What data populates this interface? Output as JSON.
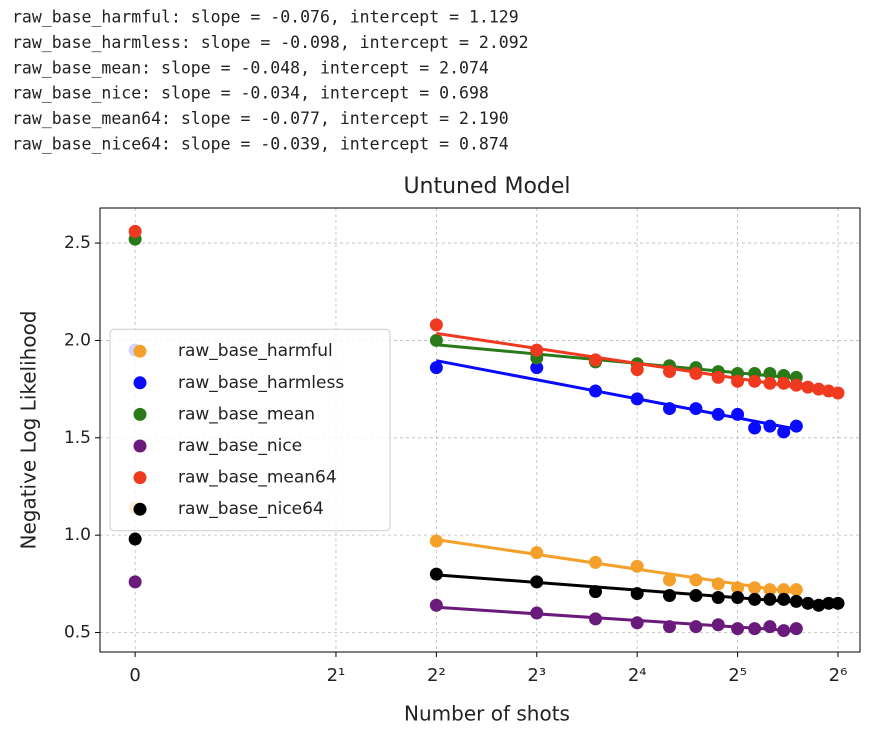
{
  "output_lines": [
    "raw_base_harmful: slope = -0.076, intercept = 1.129",
    "raw_base_harmless: slope = -0.098, intercept = 2.092",
    "raw_base_mean: slope = -0.048, intercept = 2.074",
    "raw_base_nice: slope = -0.034, intercept = 0.698",
    "raw_base_mean64: slope = -0.077, intercept = 2.190",
    "raw_base_nice64: slope = -0.039, intercept = 0.874"
  ],
  "chart_data": {
    "type": "scatter",
    "title": "Untuned Model",
    "x_label": "Number of shots",
    "y_label": "Negative Log Likelihood",
    "xscale": "symlog",
    "xscale_base": 2,
    "grid": true,
    "legend": "center left",
    "xlim": [
      -0.35,
      74.5
    ],
    "ylim": [
      0.4,
      2.68
    ],
    "xticks": [
      0,
      {
        "value": 2,
        "label": "2¹"
      },
      {
        "value": 4,
        "label": "2²"
      },
      {
        "value": 8,
        "label": "2³"
      },
      {
        "value": 16,
        "label": "2⁴"
      },
      {
        "value": 32,
        "label": "2⁵"
      },
      {
        "value": 64,
        "label": "2⁶"
      }
    ],
    "yticks": [
      0.5,
      {
        "value": 1,
        "label": "1.0"
      },
      1.5,
      {
        "value": 2,
        "label": "2.0"
      },
      2.5
    ],
    "series": [
      {
        "name": "raw_base_harmful",
        "color": "#f5a02a",
        "x": [
          0,
          4,
          8,
          12,
          16,
          20,
          24,
          28,
          32,
          36,
          40,
          44,
          48
        ],
        "values": [
          1.14,
          0.97,
          0.91,
          0.86,
          0.84,
          0.77,
          0.77,
          0.75,
          0.73,
          0.73,
          0.72,
          0.72,
          0.72
        ],
        "fit": {
          "slope": -0.076,
          "intercept": 1.129
        }
      },
      {
        "name": "raw_base_harmless",
        "color": "#0a0aff",
        "x": [
          0,
          4,
          8,
          12,
          16,
          20,
          24,
          28,
          32,
          36,
          40,
          44,
          48
        ],
        "values": [
          1.95,
          1.86,
          1.86,
          1.74,
          1.7,
          1.65,
          1.65,
          1.62,
          1.62,
          1.55,
          1.56,
          1.53,
          1.56
        ],
        "fit": {
          "slope": -0.098,
          "intercept": 2.092
        }
      },
      {
        "name": "raw_base_mean",
        "color": "#2a7a1a",
        "x": [
          0,
          4,
          8,
          12,
          16,
          20,
          24,
          28,
          32,
          36,
          40,
          44,
          48
        ],
        "values": [
          2.52,
          2.0,
          1.91,
          1.89,
          1.88,
          1.87,
          1.86,
          1.84,
          1.83,
          1.83,
          1.83,
          1.82,
          1.81
        ],
        "fit": {
          "slope": -0.048,
          "intercept": 2.074
        }
      },
      {
        "name": "raw_base_nice",
        "color": "#6a1a7a",
        "x": [
          0,
          4,
          8,
          12,
          16,
          20,
          24,
          28,
          32,
          36,
          40,
          44,
          48
        ],
        "values": [
          0.76,
          0.64,
          0.6,
          0.57,
          0.55,
          0.53,
          0.53,
          0.54,
          0.52,
          0.52,
          0.53,
          0.51,
          0.52
        ],
        "fit": {
          "slope": -0.034,
          "intercept": 0.698
        }
      },
      {
        "name": "raw_base_mean64",
        "color": "#f03a20",
        "x": [
          0,
          4,
          8,
          12,
          16,
          20,
          24,
          28,
          32,
          36,
          40,
          44,
          48,
          52,
          56,
          60,
          64
        ],
        "values": [
          2.56,
          2.08,
          1.95,
          1.9,
          1.85,
          1.84,
          1.83,
          1.81,
          1.79,
          1.79,
          1.78,
          1.78,
          1.77,
          1.76,
          1.75,
          1.74,
          1.73
        ],
        "fit": {
          "slope": -0.077,
          "intercept": 2.19
        }
      },
      {
        "name": "raw_base_nice64",
        "color": "#000000",
        "x": [
          0,
          4,
          8,
          12,
          16,
          20,
          24,
          28,
          32,
          36,
          40,
          44,
          48,
          52,
          56,
          60,
          64
        ],
        "values": [
          0.98,
          0.8,
          0.76,
          0.71,
          0.7,
          0.69,
          0.69,
          0.68,
          0.68,
          0.67,
          0.67,
          0.67,
          0.66,
          0.65,
          0.64,
          0.65,
          0.65
        ],
        "fit": {
          "slope": -0.039,
          "intercept": 0.874
        }
      }
    ]
  }
}
